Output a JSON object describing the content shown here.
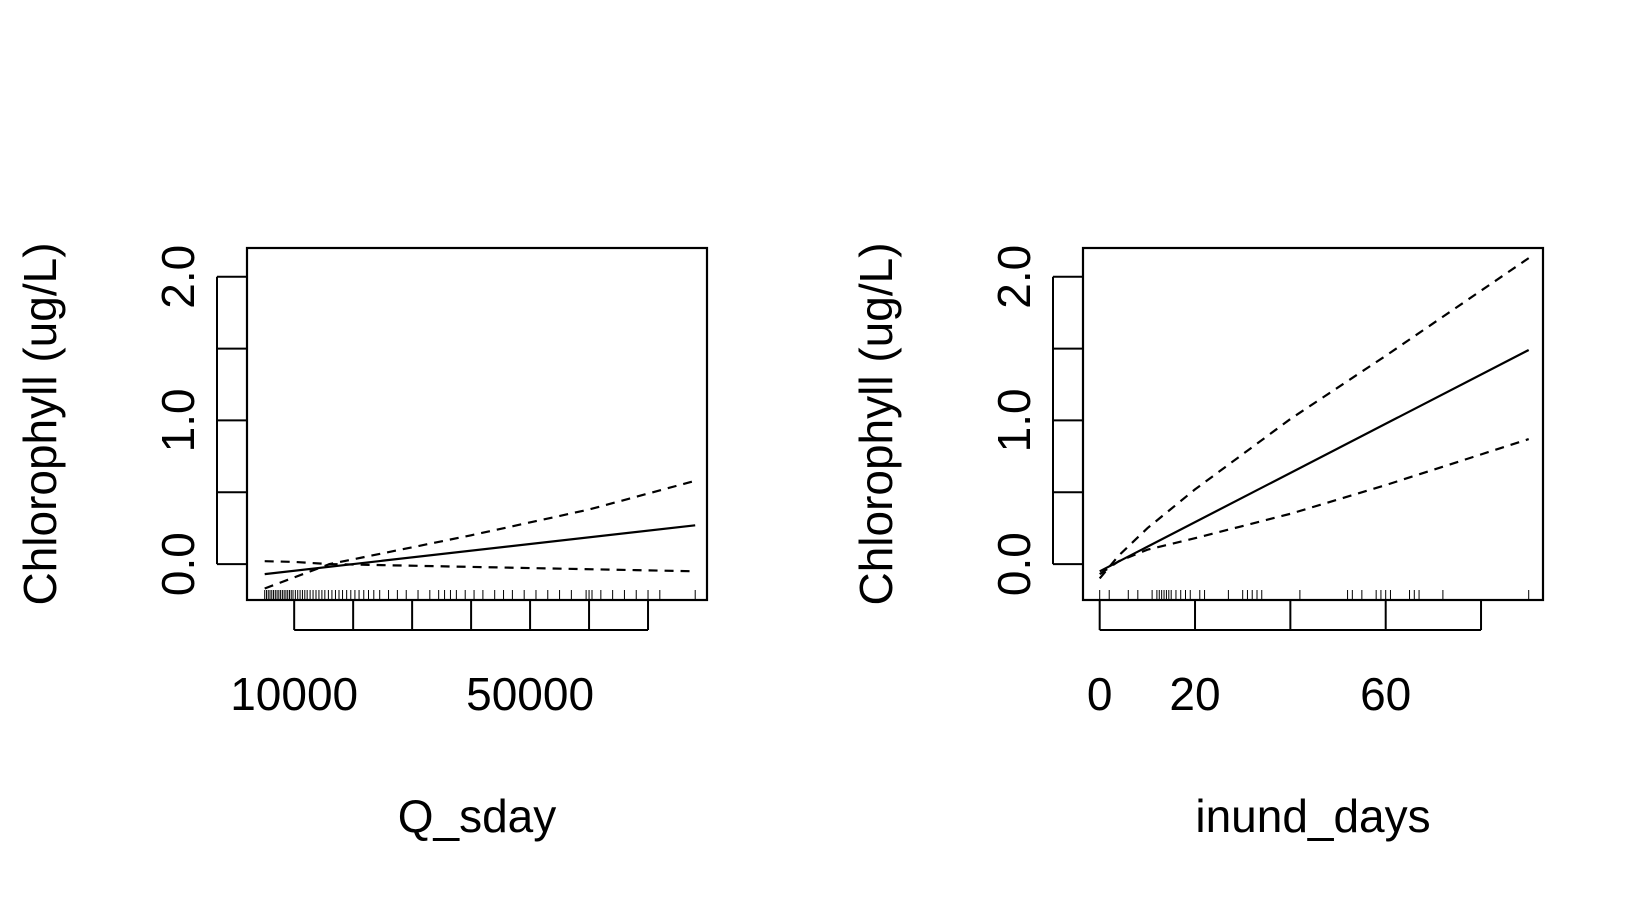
{
  "chart_data": [
    {
      "type": "line",
      "xlabel": "Q_sday",
      "ylabel": "Chlorophyll (ug/L)",
      "xlim": [
        2000,
        80000
      ],
      "ylim": [
        -0.25,
        2.2
      ],
      "x_ticks": [
        10000,
        20000,
        30000,
        40000,
        50000,
        60000,
        70000
      ],
      "x_tick_labels": [
        {
          "value": 10000,
          "label": "10000"
        },
        {
          "value": 50000,
          "label": "50000"
        }
      ],
      "y_ticks": [
        0.0,
        0.5,
        1.0,
        1.5,
        2.0
      ],
      "y_tick_labels": [
        {
          "value": 0.0,
          "label": "0.0"
        },
        {
          "value": 1.0,
          "label": "1.0"
        },
        {
          "value": 2.0,
          "label": "2.0"
        }
      ],
      "grid": false,
      "series": [
        {
          "style": "solid",
          "x": [
            5000,
            78000
          ],
          "y": [
            -0.07,
            0.27
          ]
        },
        {
          "style": "dashed",
          "x": [
            5000,
            10000,
            16000,
            78000
          ],
          "y": [
            0.02,
            0.015,
            0.0,
            -0.05
          ]
        },
        {
          "style": "dashed",
          "x": [
            5000,
            16000,
            40000,
            60000,
            78000
          ],
          "y": [
            -0.17,
            0.0,
            0.2,
            0.38,
            0.58
          ]
        }
      ],
      "rug": [
        5000,
        5300,
        5600,
        5900,
        6200,
        6500,
        6800,
        7100,
        7400,
        7700,
        8000,
        8300,
        8600,
        8900,
        9200,
        9500,
        9800,
        10200,
        10600,
        11000,
        11400,
        11800,
        12200,
        12700,
        13200,
        13700,
        14200,
        14700,
        15200,
        15800,
        16400,
        17000,
        17600,
        18200,
        18900,
        19600,
        20300,
        21000,
        21800,
        22600,
        23500,
        24500,
        26000,
        27500,
        29000,
        31000,
        33000,
        34500,
        35500,
        36500,
        37500,
        39000,
        40500,
        42000,
        44000,
        45500,
        47000,
        49000,
        51000,
        53000,
        55000,
        57000,
        59500,
        60000,
        60500,
        62000,
        64000,
        66000,
        68000,
        70000,
        72000,
        78000
      ]
    },
    {
      "type": "line",
      "xlabel": "inund_days",
      "ylabel": "Chlorophyll (ug/L)",
      "xlim": [
        -3.5,
        93
      ],
      "ylim": [
        -0.25,
        2.2
      ],
      "x_ticks": [
        0,
        20,
        40,
        60,
        80
      ],
      "x_tick_labels": [
        {
          "value": 0,
          "label": "0"
        },
        {
          "value": 20,
          "label": "20"
        },
        {
          "value": 60,
          "label": "60"
        }
      ],
      "y_ticks": [
        0.0,
        0.5,
        1.0,
        1.5,
        2.0
      ],
      "y_tick_labels": [
        {
          "value": 0.0,
          "label": "0.0"
        },
        {
          "value": 1.0,
          "label": "1.0"
        },
        {
          "value": 2.0,
          "label": "2.0"
        }
      ],
      "grid": false,
      "series": [
        {
          "style": "solid",
          "x": [
            0,
            90
          ],
          "y": [
            -0.05,
            1.49
          ]
        },
        {
          "style": "dashed",
          "x": [
            0,
            4,
            10,
            20,
            40,
            60,
            90
          ],
          "y": [
            -0.07,
            0.02,
            0.1,
            0.18,
            0.35,
            0.55,
            0.87
          ]
        },
        {
          "style": "dashed",
          "x": [
            0,
            4,
            10,
            20,
            40,
            60,
            90
          ],
          "y": [
            -0.1,
            0.06,
            0.25,
            0.52,
            1.01,
            1.45,
            2.13
          ]
        }
      ],
      "rug": [
        0,
        2,
        6,
        8,
        11,
        12,
        12.5,
        13,
        13.5,
        14,
        14.5,
        15,
        16,
        17,
        18,
        19,
        21,
        22,
        27,
        30,
        31,
        32,
        33,
        34,
        42,
        52,
        53,
        55,
        58,
        59,
        60,
        61,
        65,
        66,
        67,
        72,
        90
      ]
    }
  ]
}
